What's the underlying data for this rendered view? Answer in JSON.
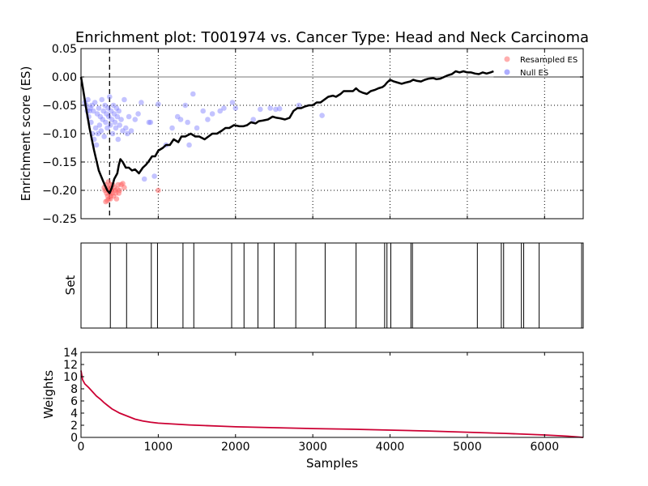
{
  "chart_data": [
    {
      "panel": "enrichment",
      "type": "line",
      "title": "Enrichment plot: T001974 vs. Cancer Type: Head and Neck Carcinoma",
      "ylabel": "Enrichment score (ES)",
      "xlim": [
        0,
        6500
      ],
      "ylim": [
        -0.25,
        0.05
      ],
      "xticks": [
        1000,
        2000,
        3000,
        4000,
        5000,
        6000
      ],
      "yticks": [
        -0.25,
        -0.2,
        -0.15,
        -0.1,
        -0.05,
        0.0,
        0.05
      ],
      "ytick_labels": [
        "−0.25",
        "−0.20",
        "−0.15",
        "−0.10",
        "−0.05",
        "0.00",
        "0.05"
      ],
      "grid": true,
      "zero_line": 0.0,
      "min_marker_x": 370,
      "legend_position": "top-right",
      "legend": [
        {
          "label": "Resampled ES",
          "color": "#ff9a9a"
        },
        {
          "label": "Null ES",
          "color": "#9a9aff"
        }
      ],
      "es_curve": {
        "color": "#000000",
        "points": [
          [
            0,
            0.0
          ],
          [
            25,
            -0.02
          ],
          [
            60,
            -0.05
          ],
          [
            110,
            -0.09
          ],
          [
            170,
            -0.13
          ],
          [
            230,
            -0.165
          ],
          [
            290,
            -0.185
          ],
          [
            340,
            -0.2
          ],
          [
            370,
            -0.205
          ],
          [
            400,
            -0.195
          ],
          [
            430,
            -0.18
          ],
          [
            470,
            -0.17
          ],
          [
            490,
            -0.155
          ],
          [
            510,
            -0.145
          ],
          [
            540,
            -0.15
          ],
          [
            580,
            -0.16
          ],
          [
            620,
            -0.16
          ],
          [
            660,
            -0.165
          ],
          [
            700,
            -0.163
          ],
          [
            750,
            -0.17
          ],
          [
            800,
            -0.16
          ],
          [
            840,
            -0.155
          ],
          [
            870,
            -0.15
          ],
          [
            920,
            -0.14
          ],
          [
            960,
            -0.14
          ],
          [
            1000,
            -0.13
          ],
          [
            1060,
            -0.125
          ],
          [
            1100,
            -0.12
          ],
          [
            1150,
            -0.12
          ],
          [
            1200,
            -0.11
          ],
          [
            1260,
            -0.115
          ],
          [
            1300,
            -0.105
          ],
          [
            1350,
            -0.105
          ],
          [
            1420,
            -0.1
          ],
          [
            1480,
            -0.105
          ],
          [
            1530,
            -0.105
          ],
          [
            1600,
            -0.11
          ],
          [
            1650,
            -0.105
          ],
          [
            1700,
            -0.1
          ],
          [
            1760,
            -0.1
          ],
          [
            1820,
            -0.095
          ],
          [
            1870,
            -0.09
          ],
          [
            1920,
            -0.09
          ],
          [
            1980,
            -0.085
          ],
          [
            2050,
            -0.087
          ],
          [
            2100,
            -0.087
          ],
          [
            2150,
            -0.085
          ],
          [
            2200,
            -0.08
          ],
          [
            2260,
            -0.082
          ],
          [
            2300,
            -0.078
          ],
          [
            2350,
            -0.077
          ],
          [
            2420,
            -0.075
          ],
          [
            2480,
            -0.07
          ],
          [
            2530,
            -0.072
          ],
          [
            2580,
            -0.073
          ],
          [
            2640,
            -0.075
          ],
          [
            2700,
            -0.072
          ],
          [
            2750,
            -0.06
          ],
          [
            2800,
            -0.055
          ],
          [
            2850,
            -0.055
          ],
          [
            2900,
            -0.052
          ],
          [
            2950,
            -0.05
          ],
          [
            3000,
            -0.05
          ],
          [
            3050,
            -0.045
          ],
          [
            3100,
            -0.045
          ],
          [
            3150,
            -0.04
          ],
          [
            3200,
            -0.035
          ],
          [
            3260,
            -0.033
          ],
          [
            3300,
            -0.035
          ],
          [
            3360,
            -0.03
          ],
          [
            3400,
            -0.025
          ],
          [
            3450,
            -0.025
          ],
          [
            3520,
            -0.025
          ],
          [
            3560,
            -0.02
          ],
          [
            3600,
            -0.025
          ],
          [
            3650,
            -0.028
          ],
          [
            3700,
            -0.03
          ],
          [
            3750,
            -0.025
          ],
          [
            3800,
            -0.023
          ],
          [
            3850,
            -0.02
          ],
          [
            3900,
            -0.018
          ],
          [
            3930,
            -0.015
          ],
          [
            3960,
            -0.01
          ],
          [
            4000,
            -0.005
          ],
          [
            4050,
            -0.008
          ],
          [
            4100,
            -0.01
          ],
          [
            4150,
            -0.012
          ],
          [
            4200,
            -0.01
          ],
          [
            4260,
            -0.008
          ],
          [
            4300,
            -0.005
          ],
          [
            4350,
            -0.007
          ],
          [
            4400,
            -0.008
          ],
          [
            4450,
            -0.005
          ],
          [
            4500,
            -0.003
          ],
          [
            4560,
            -0.002
          ],
          [
            4600,
            -0.004
          ],
          [
            4650,
            -0.003
          ],
          [
            4700,
            0.0
          ],
          [
            4750,
            0.003
          ],
          [
            4800,
            0.005
          ],
          [
            4850,
            0.01
          ],
          [
            4900,
            0.008
          ],
          [
            4950,
            0.01
          ],
          [
            5000,
            0.008
          ],
          [
            5050,
            0.008
          ],
          [
            5100,
            0.006
          ],
          [
            5150,
            0.005
          ],
          [
            5200,
            0.008
          ],
          [
            5250,
            0.006
          ],
          [
            5300,
            0.008
          ],
          [
            5340,
            0.01
          ]
        ],
        "tail": {
          "color": "#777777",
          "points": [
            [
              5340,
              0.0
            ],
            [
              6500,
              0.0
            ]
          ]
        }
      },
      "resampled_es": {
        "color": "#ff6666",
        "points": [
          [
            300,
            -0.195
          ],
          [
            310,
            -0.2
          ],
          [
            320,
            -0.19
          ],
          [
            330,
            -0.205
          ],
          [
            340,
            -0.198
          ],
          [
            345,
            -0.21
          ],
          [
            350,
            -0.2
          ],
          [
            355,
            -0.185
          ],
          [
            360,
            -0.215
          ],
          [
            365,
            -0.195
          ],
          [
            370,
            -0.2
          ],
          [
            375,
            -0.205
          ],
          [
            380,
            -0.19
          ],
          [
            385,
            -0.21
          ],
          [
            390,
            -0.198
          ],
          [
            395,
            -0.2
          ],
          [
            400,
            -0.205
          ],
          [
            410,
            -0.19
          ],
          [
            420,
            -0.21
          ],
          [
            430,
            -0.195
          ],
          [
            440,
            -0.2
          ],
          [
            450,
            -0.205
          ],
          [
            460,
            -0.215
          ],
          [
            470,
            -0.198
          ],
          [
            480,
            -0.19
          ],
          [
            490,
            -0.205
          ],
          [
            500,
            -0.2
          ],
          [
            520,
            -0.19
          ],
          [
            540,
            -0.188
          ],
          [
            560,
            -0.195
          ],
          [
            320,
            -0.22
          ],
          [
            340,
            -0.218
          ],
          [
            380,
            -0.215
          ],
          [
            1000,
            -0.2
          ]
        ]
      },
      "null_es": {
        "color": "#7b7bff",
        "points": [
          [
            50,
            -0.045
          ],
          [
            70,
            -0.05
          ],
          [
            80,
            -0.06
          ],
          [
            90,
            -0.04
          ],
          [
            100,
            -0.07
          ],
          [
            110,
            -0.06
          ],
          [
            120,
            -0.055
          ],
          [
            130,
            -0.08
          ],
          [
            140,
            -0.05
          ],
          [
            150,
            -0.1
          ],
          [
            160,
            -0.06
          ],
          [
            170,
            -0.11
          ],
          [
            180,
            -0.045
          ],
          [
            190,
            -0.09
          ],
          [
            200,
            -0.12
          ],
          [
            210,
            -0.065
          ],
          [
            220,
            -0.1
          ],
          [
            230,
            -0.055
          ],
          [
            240,
            -0.085
          ],
          [
            250,
            -0.07
          ],
          [
            260,
            -0.095
          ],
          [
            270,
            -0.04
          ],
          [
            280,
            -0.075
          ],
          [
            290,
            -0.06
          ],
          [
            300,
            -0.105
          ],
          [
            310,
            -0.05
          ],
          [
            320,
            -0.08
          ],
          [
            330,
            -0.065
          ],
          [
            340,
            -0.09
          ],
          [
            350,
            -0.055
          ],
          [
            360,
            -0.07
          ],
          [
            370,
            -0.035
          ],
          [
            380,
            -0.085
          ],
          [
            390,
            -0.06
          ],
          [
            400,
            -0.075
          ],
          [
            410,
            -0.1
          ],
          [
            420,
            -0.05
          ],
          [
            430,
            -0.065
          ],
          [
            440,
            -0.08
          ],
          [
            450,
            -0.09
          ],
          [
            460,
            -0.055
          ],
          [
            470,
            -0.07
          ],
          [
            480,
            -0.11
          ],
          [
            490,
            -0.06
          ],
          [
            500,
            -0.085
          ],
          [
            520,
            -0.075
          ],
          [
            540,
            -0.095
          ],
          [
            560,
            -0.04
          ],
          [
            580,
            -0.09
          ],
          [
            600,
            -0.1
          ],
          [
            620,
            -0.07
          ],
          [
            650,
            -0.095
          ],
          [
            700,
            -0.075
          ],
          [
            740,
            -0.065
          ],
          [
            780,
            -0.045
          ],
          [
            820,
            -0.18
          ],
          [
            880,
            -0.08
          ],
          [
            900,
            -0.08
          ],
          [
            950,
            -0.175
          ],
          [
            1000,
            -0.048
          ],
          [
            1100,
            -0.12
          ],
          [
            1180,
            -0.09
          ],
          [
            1250,
            -0.07
          ],
          [
            1290,
            -0.075
          ],
          [
            1350,
            -0.05
          ],
          [
            1380,
            -0.08
          ],
          [
            1400,
            -0.12
          ],
          [
            1450,
            -0.03
          ],
          [
            1500,
            -0.09
          ],
          [
            1580,
            -0.06
          ],
          [
            1640,
            -0.075
          ],
          [
            1700,
            -0.065
          ],
          [
            1800,
            -0.06
          ],
          [
            1850,
            -0.055
          ],
          [
            1960,
            -0.045
          ],
          [
            2000,
            -0.055
          ],
          [
            2230,
            -0.075
          ],
          [
            2320,
            -0.057
          ],
          [
            2450,
            -0.055
          ],
          [
            2520,
            -0.057
          ],
          [
            2570,
            -0.056
          ],
          [
            2820,
            -0.05
          ],
          [
            3120,
            -0.068
          ]
        ]
      }
    },
    {
      "panel": "set",
      "type": "rug",
      "ylabel": "Set",
      "xlim": [
        0,
        6500
      ],
      "positions": [
        380,
        590,
        910,
        990,
        1320,
        1460,
        1950,
        2110,
        2290,
        2500,
        2780,
        3160,
        3560,
        3930,
        3960,
        4010,
        4270,
        4290,
        5130,
        5440,
        5470,
        5700,
        5730,
        5930,
        6480,
        6500
      ]
    },
    {
      "panel": "weights",
      "type": "line",
      "ylabel": "Weights",
      "xlabel": "Samples",
      "xlim": [
        0,
        6500
      ],
      "ylim": [
        0,
        14
      ],
      "xticks": [
        0,
        1000,
        2000,
        3000,
        4000,
        5000,
        6000
      ],
      "yticks": [
        0,
        2,
        4,
        6,
        8,
        10,
        12,
        14
      ],
      "color": "#cc0033",
      "points": [
        [
          0,
          11
        ],
        [
          20,
          9.5
        ],
        [
          50,
          8.8
        ],
        [
          100,
          8.2
        ],
        [
          150,
          7.5
        ],
        [
          200,
          6.8
        ],
        [
          250,
          6.3
        ],
        [
          300,
          5.7
        ],
        [
          350,
          5.2
        ],
        [
          400,
          4.7
        ],
        [
          500,
          4.0
        ],
        [
          600,
          3.5
        ],
        [
          700,
          3.0
        ],
        [
          800,
          2.7
        ],
        [
          900,
          2.5
        ],
        [
          1000,
          2.35
        ],
        [
          1200,
          2.2
        ],
        [
          1400,
          2.05
        ],
        [
          1600,
          1.95
        ],
        [
          1800,
          1.85
        ],
        [
          2000,
          1.75
        ],
        [
          2500,
          1.6
        ],
        [
          3000,
          1.45
        ],
        [
          3500,
          1.35
        ],
        [
          4000,
          1.2
        ],
        [
          4500,
          1.05
        ],
        [
          5000,
          0.85
        ],
        [
          5500,
          0.65
        ],
        [
          6000,
          0.4
        ],
        [
          6300,
          0.2
        ],
        [
          6500,
          0.0
        ]
      ]
    }
  ]
}
